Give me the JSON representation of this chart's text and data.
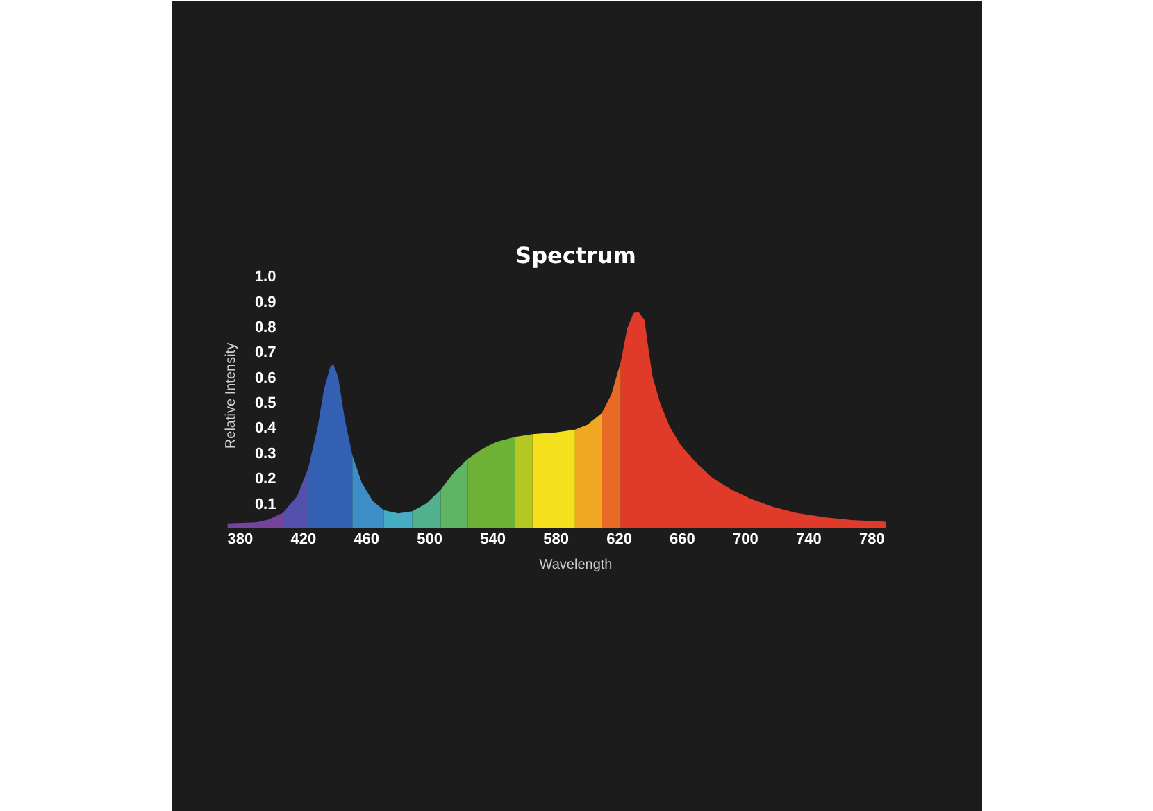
{
  "chart_data": {
    "type": "area",
    "title": "Spectrum",
    "xlabel": "Wavelength",
    "ylabel": "Relative Intensity",
    "xlim": [
      355,
      830
    ],
    "ylim": [
      0,
      1.05
    ],
    "xticks": [
      380,
      420,
      460,
      500,
      540,
      580,
      620,
      660,
      700,
      740,
      780
    ],
    "yticks": [
      0.1,
      0.2,
      0.3,
      0.4,
      0.5,
      0.6,
      0.7,
      0.8,
      0.9,
      {
        "value": 1,
        "label": "1.0"
      }
    ],
    "series": [
      {
        "color": "#74449c",
        "x": [
          372,
          390,
          398,
          407
        ],
        "values": [
          0.02,
          0.024,
          0.035,
          0.062
        ]
      },
      {
        "color": "#5451ad",
        "x": [
          407,
          416,
          423
        ],
        "values": [
          0.062,
          0.127,
          0.237
        ]
      },
      {
        "color": "#3360b2",
        "x": [
          423,
          429,
          433,
          437,
          439,
          442,
          446,
          451
        ],
        "values": [
          0.237,
          0.4,
          0.55,
          0.64,
          0.65,
          0.6,
          0.44,
          0.29
        ]
      },
      {
        "color": "#3d8ec6",
        "x": [
          451,
          457,
          464,
          471
        ],
        "values": [
          0.29,
          0.18,
          0.108,
          0.072
        ]
      },
      {
        "color": "#46adc4",
        "x": [
          471,
          480,
          489
        ],
        "values": [
          0.072,
          0.06,
          0.068
        ]
      },
      {
        "color": "#52b28f",
        "x": [
          489,
          498,
          507
        ],
        "values": [
          0.068,
          0.099,
          0.154
        ]
      },
      {
        "color": "#5fb563",
        "x": [
          507,
          515,
          524
        ],
        "values": [
          0.154,
          0.219,
          0.274
        ]
      },
      {
        "color": "#6db236",
        "x": [
          524,
          533,
          542,
          554
        ],
        "values": [
          0.274,
          0.314,
          0.342,
          0.362
        ]
      },
      {
        "color": "#b3c820",
        "x": [
          554,
          565
        ],
        "values": [
          0.362,
          0.373
        ]
      },
      {
        "color": "#f4e01c",
        "x": [
          565,
          580,
          592
        ],
        "values": [
          0.373,
          0.38,
          0.391
        ]
      },
      {
        "color": "#f0a722",
        "x": [
          592,
          600,
          609
        ],
        "values": [
          0.391,
          0.411,
          0.457
        ]
      },
      {
        "color": "#e96a27",
        "x": [
          609,
          615,
          621
        ],
        "values": [
          0.457,
          0.53,
          0.66
        ]
      },
      {
        "color": "#df3a2a",
        "x": [
          621,
          625,
          629,
          632,
          636,
          638,
          641,
          646,
          652,
          659,
          668,
          679,
          691,
          703,
          717,
          732,
          750,
          767,
          789
        ],
        "values": [
          0.66,
          0.79,
          0.852,
          0.858,
          0.825,
          0.733,
          0.604,
          0.494,
          0.402,
          0.329,
          0.265,
          0.2,
          0.154,
          0.118,
          0.086,
          0.062,
          0.044,
          0.033,
          0.026
        ]
      }
    ]
  }
}
